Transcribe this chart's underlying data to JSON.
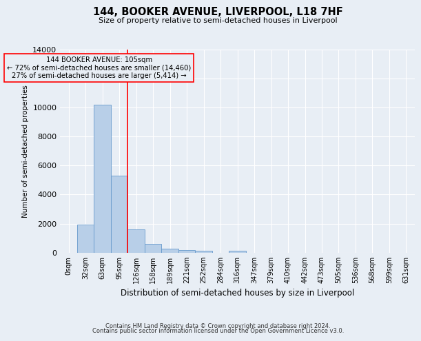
{
  "title": "144, BOOKER AVENUE, LIVERPOOL, L18 7HF",
  "subtitle": "Size of property relative to semi-detached houses in Liverpool",
  "xlabel": "Distribution of semi-detached houses by size in Liverpool",
  "ylabel": "Number of semi-detached properties",
  "footnote1": "Contains HM Land Registry data © Crown copyright and database right 2024.",
  "footnote2": "Contains public sector information licensed under the Open Government Licence v3.0.",
  "bar_labels": [
    "0sqm",
    "32sqm",
    "63sqm",
    "95sqm",
    "126sqm",
    "158sqm",
    "189sqm",
    "221sqm",
    "252sqm",
    "284sqm",
    "316sqm",
    "347sqm",
    "379sqm",
    "410sqm",
    "442sqm",
    "473sqm",
    "505sqm",
    "536sqm",
    "568sqm",
    "599sqm",
    "631sqm"
  ],
  "bar_values": [
    0,
    1950,
    10200,
    5300,
    1580,
    600,
    270,
    175,
    130,
    0,
    110,
    0,
    0,
    0,
    0,
    0,
    0,
    0,
    0,
    0,
    0
  ],
  "bar_color": "#b8cfe8",
  "bar_edge_color": "#6699cc",
  "ylim": [
    0,
    14000
  ],
  "yticks": [
    0,
    2000,
    4000,
    6000,
    8000,
    10000,
    12000,
    14000
  ],
  "redline_x": 3.5,
  "annotation_text_line1": "144 BOOKER AVENUE: 105sqm",
  "annotation_text_line2": "← 72% of semi-detached houses are smaller (14,460)",
  "annotation_text_line3": "27% of semi-detached houses are larger (5,414) →",
  "background_color": "#e8eef5",
  "grid_color": "#ffffff"
}
